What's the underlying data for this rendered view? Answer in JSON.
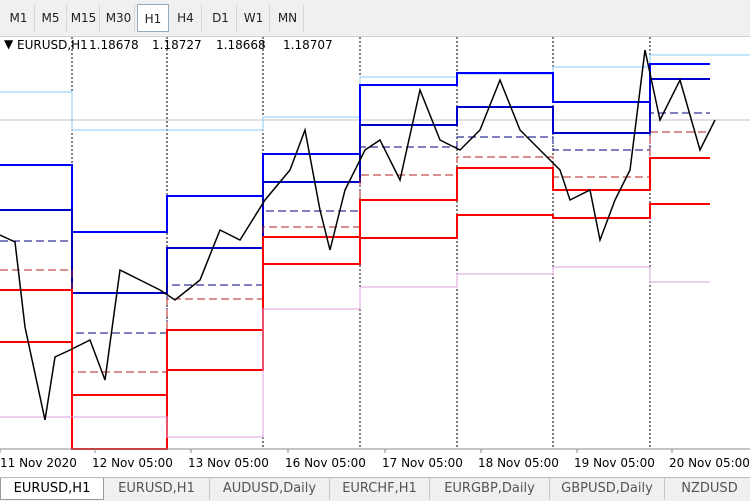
{
  "toolbar": {
    "timeframes": [
      {
        "label": "M1",
        "active": false
      },
      {
        "label": "M5",
        "active": false
      },
      {
        "label": "M15",
        "active": false
      },
      {
        "label": "M30",
        "active": false
      },
      {
        "label": "H1",
        "active": true
      },
      {
        "label": "H4",
        "active": false
      },
      {
        "label": "D1",
        "active": false
      },
      {
        "label": "W1",
        "active": false
      },
      {
        "label": "MN",
        "active": false
      }
    ]
  },
  "chart": {
    "symbol": "EURUSD,H1",
    "ohlc": [
      1.18678,
      1.18727,
      1.18668,
      1.18707
    ],
    "x_labels": [
      "11 Nov 2020",
      "12 Nov 05:00",
      "13 Nov 05:00",
      "16 Nov 05:00",
      "17 Nov 05:00",
      "18 Nov 05:00",
      "19 Nov 05:00",
      "20 Nov 05:00"
    ]
  },
  "tabs": [
    {
      "label": "EURUSD,H1",
      "active": true
    },
    {
      "label": "EURUSD,H1",
      "active": false
    },
    {
      "label": "AUDUSD,Daily",
      "active": false
    },
    {
      "label": "EURCHF,H1",
      "active": false
    },
    {
      "label": "EURGBP,Daily",
      "active": false
    },
    {
      "label": "GBPUSD,Daily",
      "active": false
    },
    {
      "label": "NZDUSD",
      "active": false
    }
  ]
}
